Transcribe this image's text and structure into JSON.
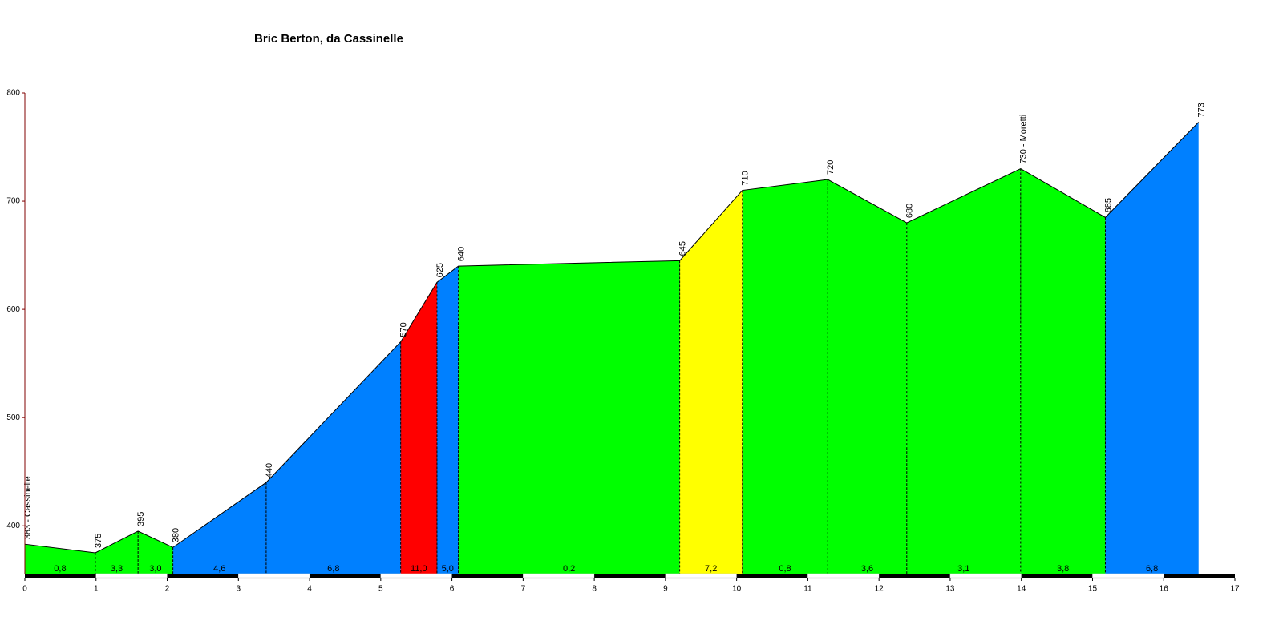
{
  "chart_data": {
    "type": "area",
    "title": "Bric Berton, da Cassinelle",
    "x": [
      0,
      0.99,
      1.59,
      2.08,
      3.39,
      5.28,
      5.79,
      6.09,
      9.2,
      10.08,
      11.28,
      12.39,
      13.99,
      15.18,
      16.49
    ],
    "values": [
      383,
      375,
      395,
      380,
      440,
      570,
      625,
      640,
      645,
      710,
      720,
      680,
      730,
      685,
      773
    ],
    "value_labels": [
      "383 - Cassinelle",
      null,
      null,
      null,
      null,
      null,
      null,
      null,
      null,
      null,
      null,
      null,
      "730 - Moretti",
      null,
      null
    ],
    "segments": {
      "values": [
        0.8,
        3.3,
        3.0,
        4.6,
        6.8,
        11.0,
        5.0,
        0.2,
        7.2,
        0.8,
        3.6,
        3.1,
        3.8,
        6.8
      ],
      "value_labels": [
        "0,8",
        "3,3",
        "3,0",
        "4,6",
        "6,8",
        "11,0",
        "5,0",
        "0,2",
        "7,2",
        "0,8",
        "3,6",
        "3,1",
        "3,8",
        "6,8"
      ],
      "colors": [
        "#00ff00",
        "#00ff00",
        "#00ff00",
        "#0080ff",
        "#0080ff",
        "#ff0000",
        "#0080ff",
        "#00ff00",
        "#ffff00",
        "#00ff00",
        "#00ff00",
        "#00ff00",
        "#00ff00",
        "#0080ff"
      ]
    },
    "xlim": [
      0,
      17
    ],
    "xticks": [
      0,
      1,
      2,
      3,
      4,
      5,
      6,
      7,
      8,
      9,
      10,
      11,
      12,
      13,
      14,
      15,
      16,
      17
    ],
    "ylim": [
      355,
      800
    ],
    "yticks": [
      400,
      500,
      600,
      700,
      800
    ]
  }
}
